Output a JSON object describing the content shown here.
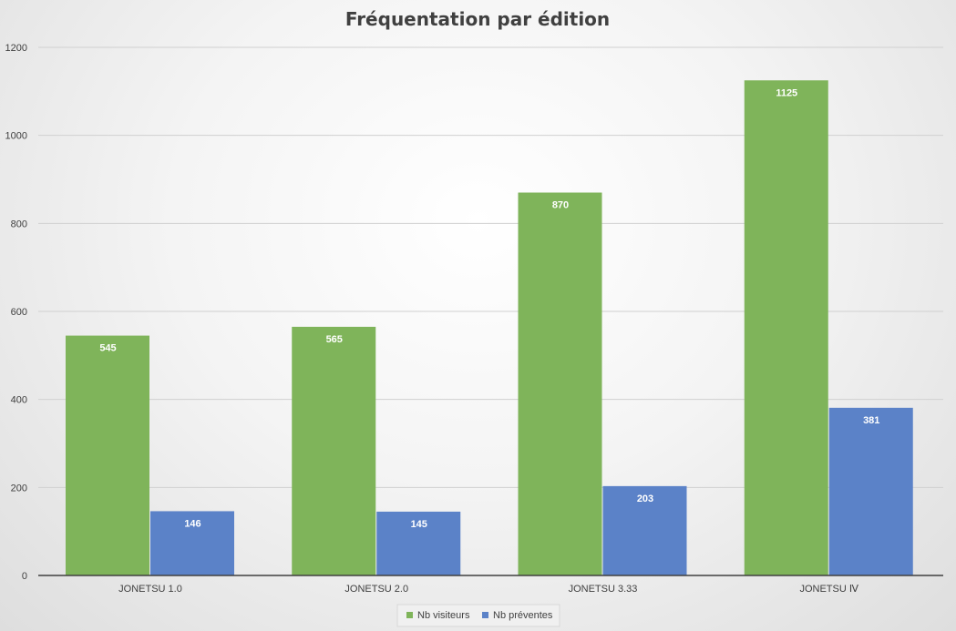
{
  "chart_data": {
    "type": "bar",
    "title": "Fréquentation par édition",
    "categories": [
      "JONETSU 1.0",
      "JONETSU 2.0",
      "JONETSU 3.33",
      "JONETSU Ⅳ"
    ],
    "series": [
      {
        "name": "Nb visiteurs",
        "values": [
          545,
          565,
          870,
          1125
        ],
        "color": "#7fb45a"
      },
      {
        "name": "Nb préventes",
        "values": [
          146,
          145,
          203,
          381
        ],
        "color": "#5b82c8"
      }
    ],
    "ylim": [
      0,
      1200
    ],
    "yticks": [
      0,
      200,
      400,
      600,
      800,
      1000,
      1200
    ],
    "grid": true,
    "legend_position": "bottom",
    "data_labels": true
  }
}
